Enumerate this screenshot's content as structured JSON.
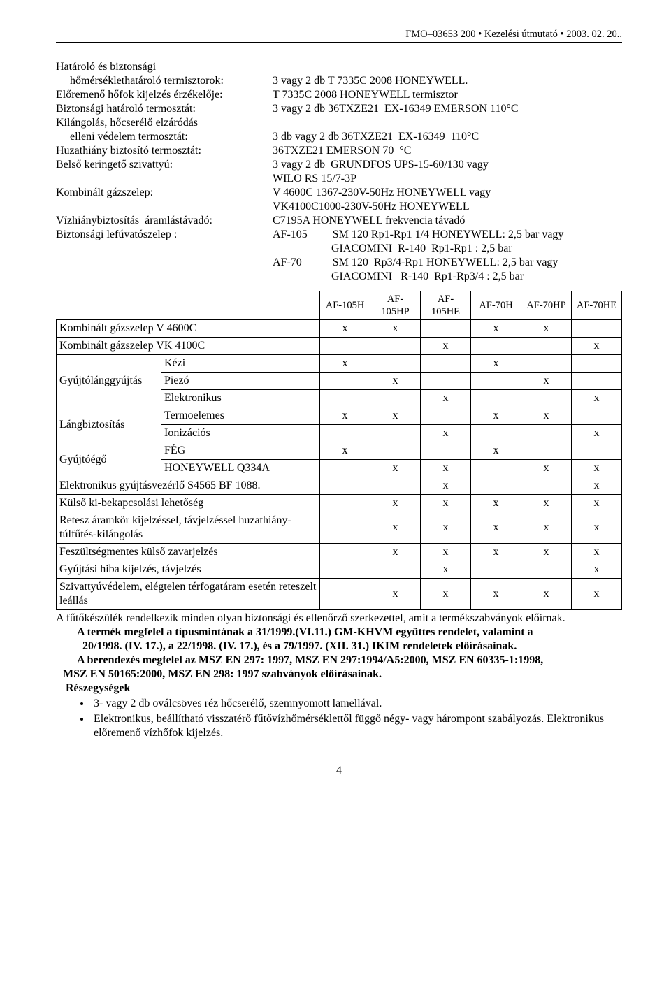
{
  "header": "FMO–03653 200 • Kezelési útmutató • 2003. 02. 20..",
  "specs": [
    {
      "label": "Határoló és biztonsági",
      "value": ""
    },
    {
      "label": "     hőmérséklethatároló termisztorok:",
      "value": "3 vagy 2 db T 7335C 2008 HONEYWELL."
    },
    {
      "label": "Előremenő hőfok kijelzés érzékelője:",
      "value": "T 7335C 2008 HONEYWELL termisztor"
    },
    {
      "label": "Biztonsági határoló termosztát:",
      "value": "3 vagy 2 db 36TXZE21  EX-16349 EMERSON 110°C"
    },
    {
      "label": "Kilángolás, hőcserélő elzáródás",
      "value": ""
    },
    {
      "label": "     elleni védelem termosztát:",
      "value": "3 db vagy 2 db 36TXZE21  EX-16349  110°C"
    },
    {
      "label": "Huzathiány biztosító termosztát:",
      "value": "36TXZE21 EMERSON 70  °C"
    },
    {
      "label": "Belső keringető szivattyú:",
      "value": "3 vagy 2 db  GRUNDFOS UPS-15-60/130 vagy\nWILO RS 15/7-3P"
    },
    {
      "label": "Kombinált gázszelep:",
      "value": "V 4600C 1367-230V-50Hz HONEYWELL vagy\nVK4100C1000-230V-50Hz HONEYWELL"
    },
    {
      "label": "Vízhiánybiztosítás  áramlástávadó:",
      "value": "C7195A HONEYWELL frekvencia távadó"
    },
    {
      "label": "Biztonsági lefúvatószelep :",
      "value": "AF-105         SM 120 Rp1-Rp1 1/4 HONEYWELL: 2,5 bar vagy\n                     GIACOMINI  R-140  Rp1-Rp1 : 2,5 bar\nAF-70           SM 120  Rp3/4-Rp1 HONEYWELL: 2,5 bar vagy\n                     GIACOMINI   R-140  Rp1-Rp3/4 : 2,5 bar"
    }
  ],
  "table": {
    "columns": [
      "AF-105H",
      "AF-105HP",
      "AF-105HE",
      "AF-70H",
      "AF-70HP",
      "AF-70HE"
    ],
    "rows": [
      {
        "label": "Kombinált gázszelep V 4600C",
        "span": 2,
        "marks": [
          "x",
          "x",
          "",
          "x",
          "x",
          ""
        ]
      },
      {
        "label": "Kombinált gázszelep VK 4100C",
        "span": 2,
        "marks": [
          "",
          "",
          "x",
          "",
          "",
          "x"
        ]
      },
      {
        "group": "Gyújtólánggyújtás",
        "groupRows": 3,
        "sub": "Kézi",
        "marks": [
          "x",
          "",
          "",
          "x",
          "",
          ""
        ]
      },
      {
        "sub": "Piezó",
        "marks": [
          "",
          "x",
          "",
          "",
          "x",
          ""
        ]
      },
      {
        "sub": "Elektronikus",
        "marks": [
          "",
          "",
          "x",
          "",
          "",
          "x"
        ]
      },
      {
        "group": "Lángbiztosítás",
        "groupRows": 2,
        "sub": "Termoelemes",
        "marks": [
          "x",
          "x",
          "",
          "x",
          "x",
          ""
        ]
      },
      {
        "sub": "Ionizációs",
        "marks": [
          "",
          "",
          "x",
          "",
          "",
          "x"
        ]
      },
      {
        "group": "Gyújtóégő",
        "groupRows": 2,
        "sub": "FÉG",
        "marks": [
          "x",
          "",
          "",
          "x",
          "",
          ""
        ]
      },
      {
        "sub": "HONEYWELL Q334A",
        "marks": [
          "",
          "x",
          "x",
          "",
          "x",
          "x"
        ]
      },
      {
        "label": "Elektronikus gyújtásvezérlő S4565 BF 1088.",
        "span": 2,
        "marks": [
          "",
          "",
          "x",
          "",
          "",
          "x"
        ]
      },
      {
        "label": "Külső ki-bekapcsolási lehetőség",
        "span": 2,
        "marks": [
          "",
          "x",
          "x",
          "x",
          "x",
          "x"
        ]
      },
      {
        "label": "Retesz áramkör kijelzéssel, távjelzéssel huzathiány- túlfűtés-kilángolás",
        "span": 2,
        "marks": [
          "",
          "x",
          "x",
          "x",
          "x",
          "x"
        ]
      },
      {
        "label": "Feszültségmentes külső zavarjelzés",
        "span": 2,
        "marks": [
          "",
          "x",
          "x",
          "x",
          "x",
          "x"
        ]
      },
      {
        "label": "Gyújtási hiba kijelzés, távjelzés",
        "span": 2,
        "marks": [
          "",
          "",
          "x",
          "",
          "",
          "x"
        ]
      },
      {
        "label": "Szivattyúvédelem, elégtelen térfogatáram esetén reteszelt leállás",
        "span": 2,
        "marks": [
          "",
          "x",
          "x",
          "x",
          "x",
          "x"
        ]
      }
    ]
  },
  "notes": {
    "l1": "A fűtőkészülék rendelkezik minden olyan biztonsági és ellenőrző szerkezettel, amit a termékszabványok előírnak.",
    "l2": "A termék megfelel a típusmintának a 31/1999.(VI.11.) GM-KHVM együttes rendelet, valamint a",
    "l3": "20/1998. (IV. 17.), a 22/1998. (IV. 17.), és a 79/1997. (XII. 31.) IKIM rendeletek előírásainak.",
    "l4": "A berendezés megfelel az MSZ EN 297: 1997, MSZ EN 297:1994/A5:2000, MSZ EN 60335-1:1998,",
    "l5": "MSZ EN 50165:2000, MSZ EN 298: 1997 szabványok előírásainak.",
    "l6": "Részegységek",
    "b1": "3- vagy 2 db oválcsöves réz hőcserélő, szemnyomott lamellával.",
    "b2": "Elektronikus, beállítható visszatérő fűtővízhőmérséklettől függő négy- vagy hárompont szabályozás. Elektronikus előremenő vízhőfok kijelzés."
  },
  "pageNumber": "4"
}
